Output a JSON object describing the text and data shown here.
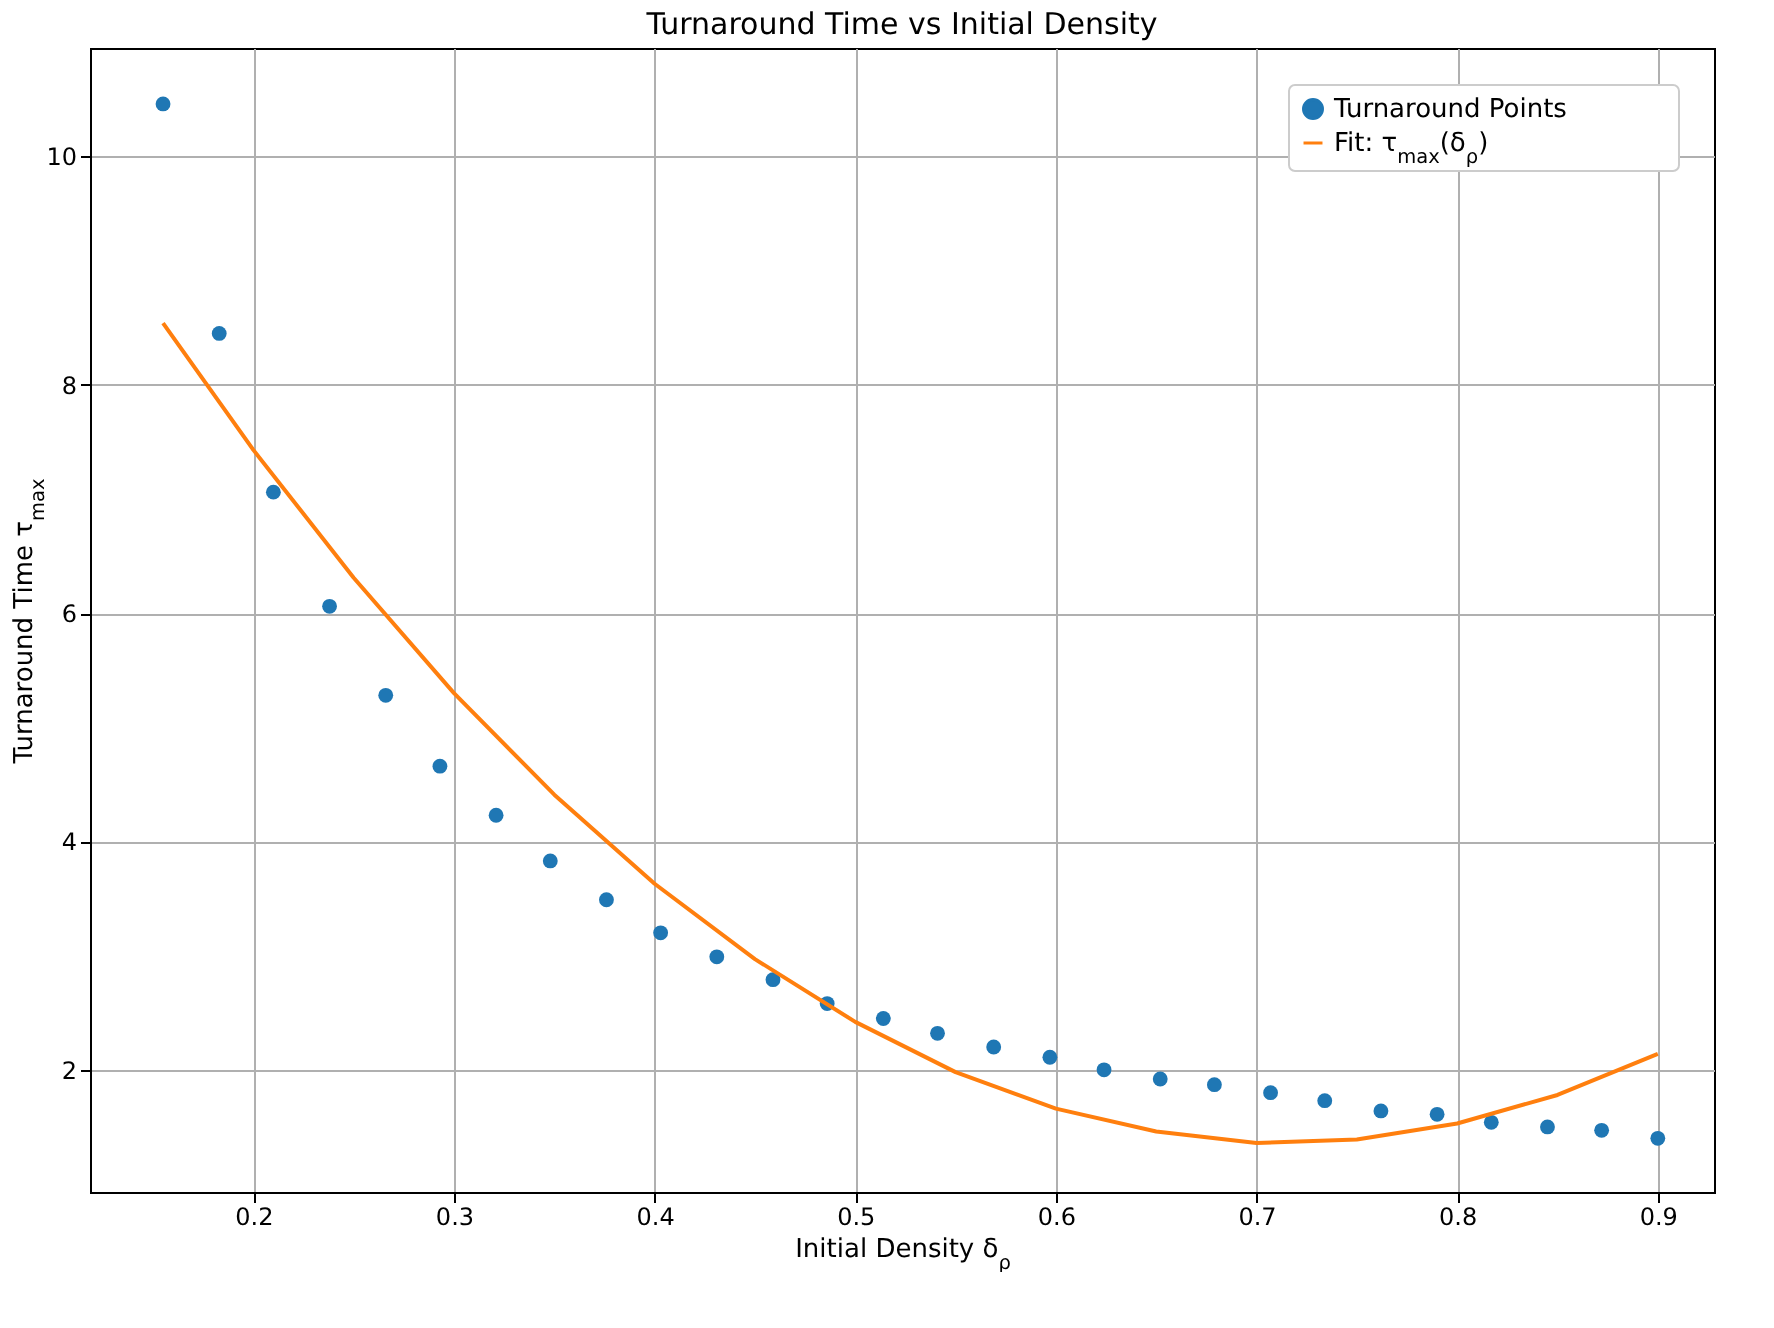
{
  "chart_data": {
    "type": "scatter",
    "title": "Turnaround Time vs Initial Density",
    "xlabel": "Initial Density δ$_{ρ}$",
    "ylabel": "Turnaround Time τ$_{max}$",
    "xlim": [
      0.1186,
      0.928
    ],
    "ylim": [
      0.93,
      10.95
    ],
    "xticks": [
      0.2,
      0.3,
      0.4,
      0.5,
      0.6,
      0.7,
      0.8,
      0.9
    ],
    "yticks": [
      2,
      4,
      6,
      8,
      10
    ],
    "grid": true,
    "legend": "top right",
    "series": [
      {
        "name": "Turnaround Points",
        "marker": "circle",
        "color": "#1f77b4",
        "x": [
          0.155,
          0.183,
          0.21,
          0.238,
          0.266,
          0.293,
          0.321,
          0.348,
          0.376,
          0.403,
          0.431,
          0.459,
          0.486,
          0.514,
          0.541,
          0.569,
          0.597,
          0.624,
          0.652,
          0.679,
          0.707,
          0.734,
          0.762,
          0.79,
          0.817,
          0.845,
          0.872,
          0.9
        ],
        "values": [
          10.46,
          8.45,
          7.06,
          6.06,
          5.28,
          4.66,
          4.23,
          3.83,
          3.49,
          3.2,
          2.99,
          2.79,
          2.58,
          2.45,
          2.32,
          2.2,
          2.11,
          2.0,
          1.92,
          1.87,
          1.8,
          1.73,
          1.64,
          1.61,
          1.54,
          1.5,
          1.47,
          1.4
        ]
      },
      {
        "name": "Fit: τ$_{max}$(δ$_{ρ}$)",
        "type": "line",
        "color": "#ff7f0e",
        "x": [
          0.155,
          0.2,
          0.25,
          0.3,
          0.35,
          0.4,
          0.45,
          0.5,
          0.55,
          0.6,
          0.65,
          0.7,
          0.75,
          0.8,
          0.85,
          0.9
        ],
        "values": [
          8.54,
          7.43,
          6.31,
          5.3,
          4.41,
          3.63,
          2.97,
          2.42,
          1.98,
          1.66,
          1.46,
          1.36,
          1.39,
          1.53,
          1.78,
          2.14
        ]
      }
    ]
  }
}
